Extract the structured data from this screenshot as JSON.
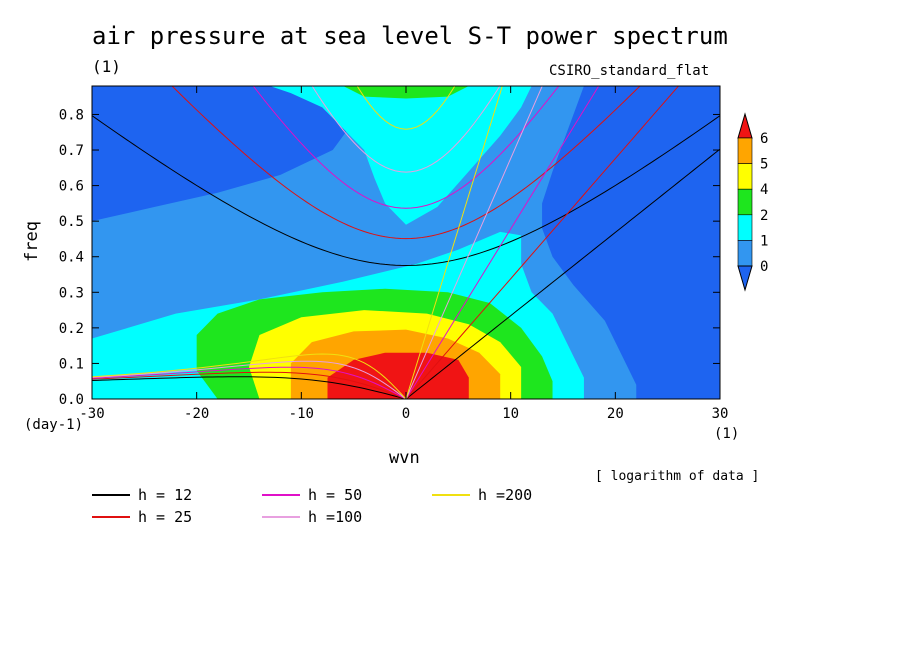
{
  "title": "air pressure at sea level S-T power spectrum",
  "units_label": "(1)",
  "dataset_label": "CSIRO_standard_flat",
  "note": "[ logarithm of data ]",
  "colors": {
    "level_below_0": "#1e64f0",
    "level_0": "#3296f0",
    "level_1": "#00ffff",
    "level_2": "#1ee61e",
    "level_4": "#ffff00",
    "level_5": "#ffa500",
    "level_6": "#f01414"
  },
  "chart_data": {
    "type": "heatmap",
    "title": "air pressure at sea level S-T power spectrum",
    "xlabel": "wvn",
    "xunits": "(1)",
    "ylabel": "freq",
    "yunits": "(day-1)",
    "xlim": [
      -30,
      30
    ],
    "ylim": [
      0,
      0.88
    ],
    "xticks": [
      -30,
      -20,
      -10,
      0,
      10,
      20,
      30
    ],
    "yticks": [
      0.0,
      0.1,
      0.2,
      0.3,
      0.4,
      0.5,
      0.6,
      0.7,
      0.8
    ],
    "colorbar": {
      "levels": [
        "0",
        "1",
        "2",
        "4",
        "5",
        "6"
      ],
      "colors": [
        "#1e64f0",
        "#3296f0",
        "#00ffff",
        "#1ee61e",
        "#ffff00",
        "#ffa500",
        "#f01414"
      ]
    },
    "dispersion_legend": [
      {
        "label": "h = 12",
        "color": "#000000"
      },
      {
        "label": "h = 25",
        "color": "#e01010"
      },
      {
        "label": "h = 50",
        "color": "#e010c8"
      },
      {
        "label": "h =100",
        "color": "#e8a0e0"
      },
      {
        "label": "h =200",
        "color": "#f0e010"
      }
    ],
    "equivalent_depths_m": [
      12,
      25,
      50,
      100,
      200
    ]
  }
}
